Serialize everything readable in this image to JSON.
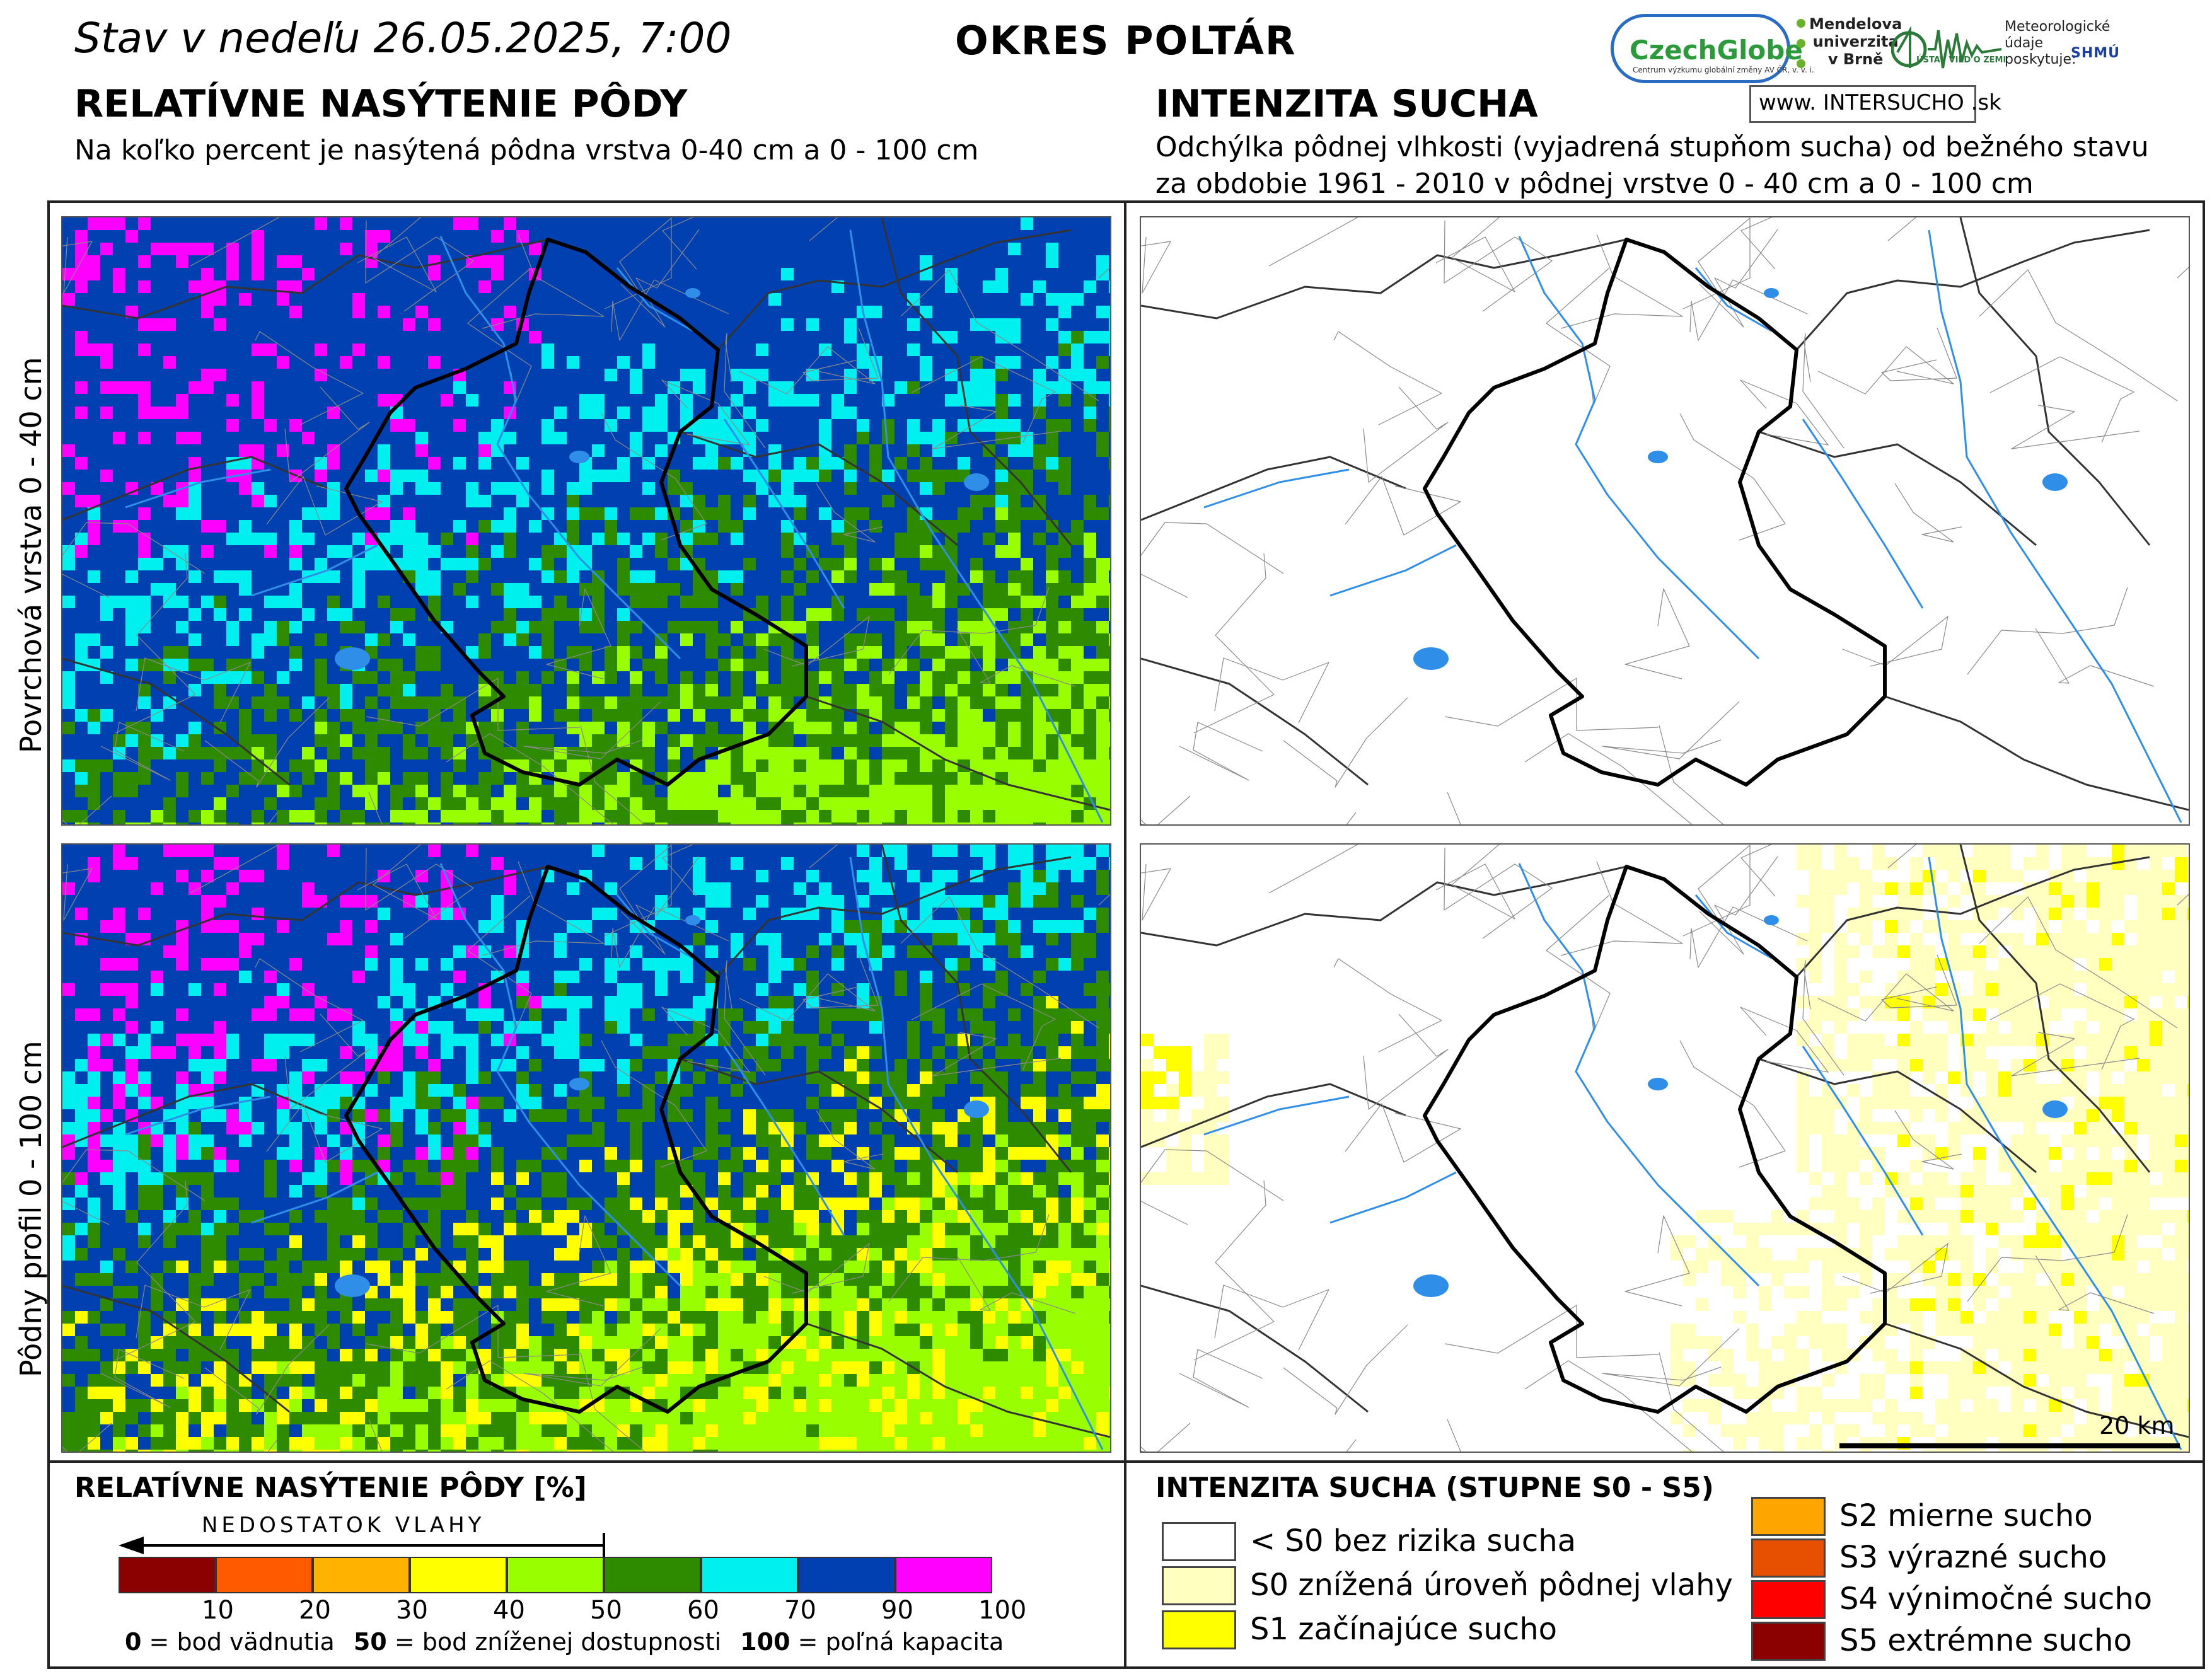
{
  "header": {
    "date_text": "Stav v nedeľu 26.05.2025, 7:00",
    "region": "OKRES POLTÁR"
  },
  "logos": {
    "czechglobe": "CzechGlobe",
    "czechglobe_sub": "Centrum výzkumu globální změny AV ČR, v. v. i.",
    "mendel_line1": "Mendelova",
    "mendel_line2": "univerzita",
    "mendel_line3": "v Brně",
    "uvz": "ÚSTAV VIED O ZEMI",
    "met_line1": "Meteorologické",
    "met_line2": "údaje",
    "met_line3": "poskytuje:",
    "shmu": "SHMÚ",
    "intersucho": "www. INTERSUCHO .sk"
  },
  "left_section": {
    "title": "RELATÍVNE NASÝTENIE PÔDY",
    "subtitle": "Na koľko percent je nasýtená pôdna vrstva 0-40 cm a 0 - 100 cm"
  },
  "right_section": {
    "title": "INTENZITA SUCHA",
    "subtitle_line1": "Odchýlka pôdnej vlhkosti (vyjadrená stupňom sucha) od bežného stavu",
    "subtitle_line2": "za obdobie 1961 - 2010 v pôdnej vrstve 0 - 40 cm a 0 - 100 cm"
  },
  "row_labels": {
    "top": "Povrchová vrstva 0 - 40 cm",
    "bottom": "Pôdny profil 0 - 100 cm"
  },
  "scalebar": {
    "label": "20 km"
  },
  "legend_saturation": {
    "title": "RELATÍVNE NASÝTENIE PÔDY [%]",
    "arrow_label": "NEDOSTATOK VLAHY",
    "bins": [
      {
        "color": "#8b0000",
        "upper": "10"
      },
      {
        "color": "#ff5a00",
        "upper": "20"
      },
      {
        "color": "#ffb300",
        "upper": "30"
      },
      {
        "color": "#ffff00",
        "upper": "40"
      },
      {
        "color": "#99ff00",
        "upper": "50"
      },
      {
        "color": "#2e8b00",
        "upper": "60"
      },
      {
        "color": "#00f0f0",
        "upper": "70"
      },
      {
        "color": "#0040b0",
        "upper": "90"
      },
      {
        "color": "#ff00ff",
        "upper": "100"
      }
    ],
    "notes": [
      {
        "value": "0",
        "text": "= bod vädnutia"
      },
      {
        "value": "50",
        "text": "= bod zníženej dostupnosti"
      },
      {
        "value": "100",
        "text": "= poľná kapacita"
      }
    ]
  },
  "legend_drought": {
    "title": "INTENZITA SUCHA (STUPNE S0 - S5)",
    "categories": [
      {
        "color": "#ffffff",
        "label": "< S0 bez rizika sucha"
      },
      {
        "color": "#ffffc0",
        "label": "S0 znížená úroveň pôdnej vlahy"
      },
      {
        "color": "#ffff00",
        "label": "S1 začínajúce sucho"
      },
      {
        "color": "#ffa500",
        "label": "S2 mierne sucho"
      },
      {
        "color": "#e65000",
        "label": "S3 výrazné sucho"
      },
      {
        "color": "#ff0000",
        "label": "S4 výnimočné sucho"
      },
      {
        "color": "#8b0000",
        "label": "S5 extrémne sucho"
      }
    ]
  }
}
